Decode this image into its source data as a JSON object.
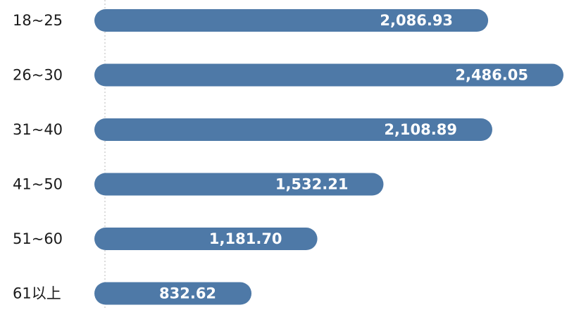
{
  "chart_data": {
    "type": "bar",
    "orientation": "horizontal",
    "categories": [
      "18~25",
      "26~30",
      "31~40",
      "41~50",
      "51~60",
      "61以上"
    ],
    "values": [
      2086.93,
      2486.05,
      2108.89,
      1532.21,
      1181.7,
      832.62
    ],
    "value_labels": [
      "2,086.93",
      "2,486.05",
      "2,108.89",
      "1,532.21",
      "1,181.70",
      "832.62"
    ],
    "title": "",
    "xlabel": "",
    "ylabel": "",
    "xlim": [
      0,
      2486.05
    ],
    "grid": false,
    "legend": "none",
    "bar_color": "#4e79a7",
    "value_label_color": "#ffffff"
  }
}
